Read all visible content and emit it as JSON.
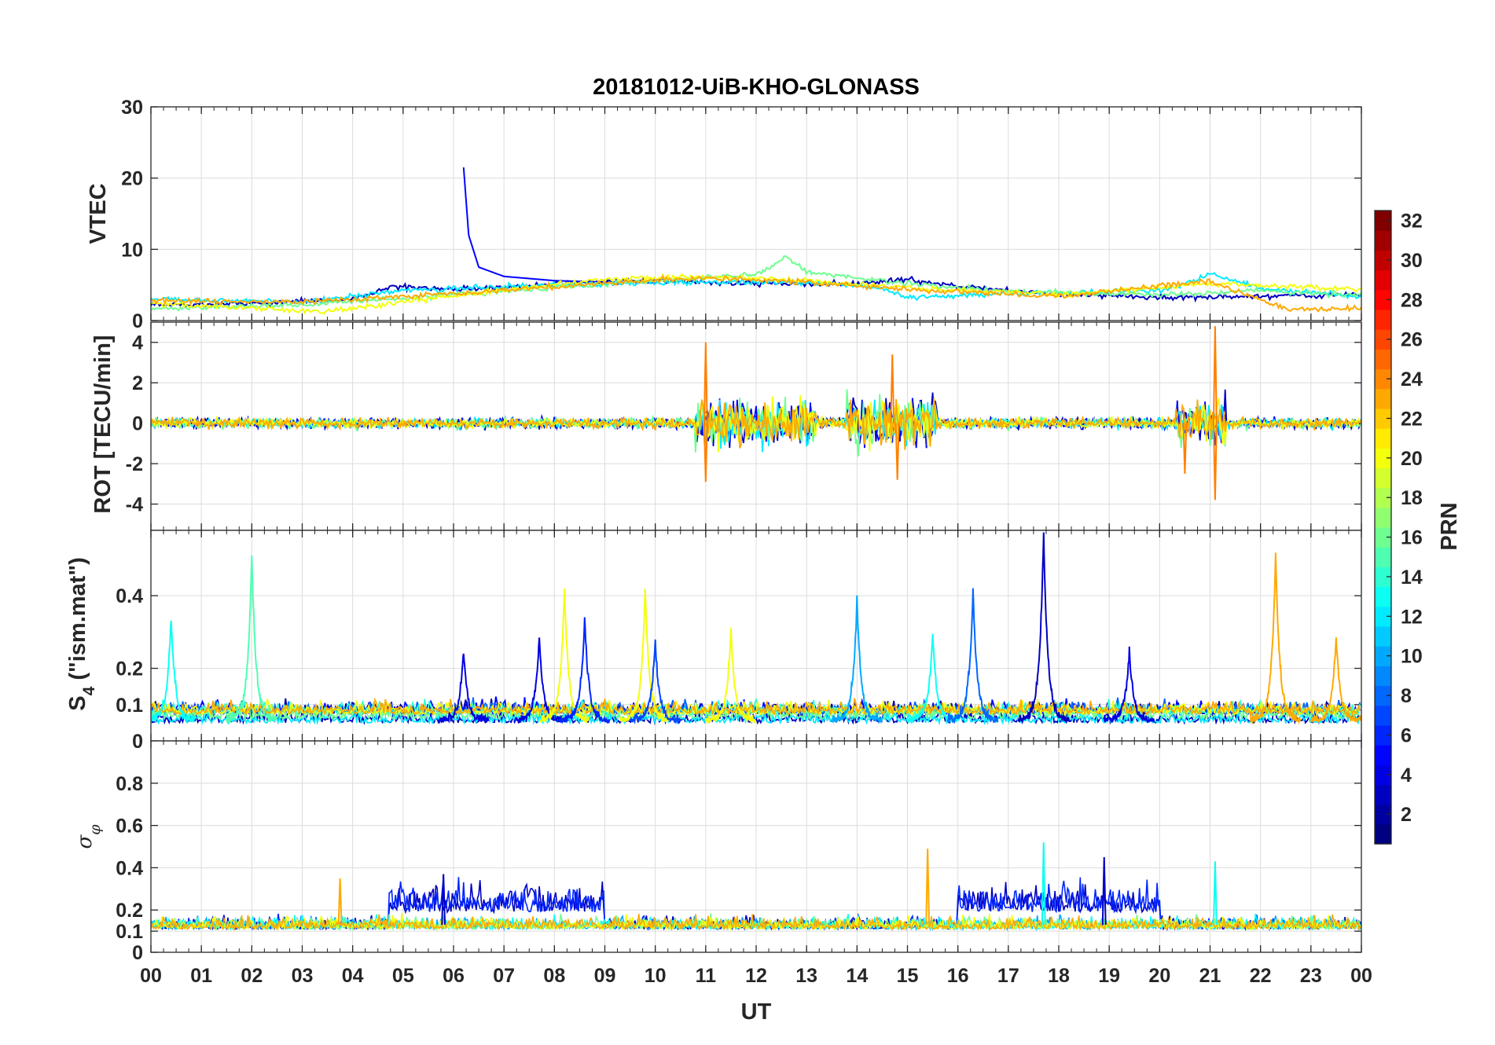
{
  "title": "20181012-UiB-KHO-GLONASS",
  "xlabel": "UT",
  "x_tick_labels": [
    "00",
    "01",
    "02",
    "03",
    "04",
    "05",
    "06",
    "07",
    "08",
    "09",
    "10",
    "11",
    "12",
    "13",
    "14",
    "15",
    "16",
    "17",
    "18",
    "19",
    "20",
    "21",
    "22",
    "23",
    "00"
  ],
  "colorbar": {
    "label": "PRN",
    "colormap": "jet",
    "range": [
      1,
      32
    ],
    "tick_labels": [
      "2",
      "4",
      "6",
      "8",
      "10",
      "12",
      "14",
      "16",
      "18",
      "20",
      "22",
      "24",
      "26",
      "28",
      "30",
      "32"
    ]
  },
  "panels": [
    {
      "ylabel": "VTEC",
      "tick_labels": [
        "0",
        "10",
        "20",
        "30"
      ]
    },
    {
      "ylabel": "ROT [TECU/min]",
      "tick_labels": [
        "-4",
        "-2",
        "0",
        "2",
        "4"
      ]
    },
    {
      "ylabel_main": "S",
      "ylabel_sub": "4",
      "ylabel_rest": " (\"ism.mat\")",
      "tick_labels": [
        "0",
        "0.1",
        "0.2",
        "0.4"
      ]
    },
    {
      "ylabel_main": "σ",
      "ylabel_sub": "φ",
      "tick_labels": [
        "0",
        "0.1",
        "0.2",
        "0.4",
        "0.6",
        "0.8"
      ]
    }
  ],
  "chart_data": [
    {
      "type": "line",
      "panel": "VTEC",
      "x_unit": "hours UT",
      "ylim": [
        0,
        30
      ],
      "yticks": [
        0,
        10,
        20,
        30
      ],
      "xlim": [
        0,
        24
      ],
      "grid": true,
      "series": [
        {
          "prn": 3,
          "color": "#0000ff",
          "x": [
            0,
            2,
            4,
            4.8,
            6,
            7,
            8,
            10,
            12,
            14,
            15,
            16,
            18,
            20,
            22,
            24
          ],
          "y": [
            2.2,
            2.4,
            3,
            4.8,
            4.3,
            4.6,
            5.2,
            5.6,
            5.2,
            5.2,
            5.8,
            4.8,
            3.8,
            3.2,
            3.4,
            3.6
          ]
        },
        {
          "prn": 5,
          "color": "#0000cd",
          "x": [
            6.2,
            6.3,
            6.5,
            7,
            8,
            9,
            10
          ],
          "y": [
            21.5,
            12,
            7.5,
            6.2,
            5.6,
            5.4,
            5.3
          ]
        },
        {
          "prn": 12,
          "color": "#00c8ff",
          "x": [
            0,
            3,
            5,
            7,
            9,
            11,
            13,
            14.5,
            15,
            17,
            20,
            21.1,
            22,
            24
          ],
          "y": [
            3,
            2.6,
            4.2,
            4.8,
            5.2,
            5.4,
            5.3,
            4.6,
            3.2,
            3.8,
            4.2,
            6.5,
            4.5,
            3.4
          ]
        },
        {
          "prn": 16,
          "color": "#50ff60",
          "x": [
            0,
            3,
            5,
            8,
            10,
            12,
            12.6,
            13,
            15,
            17,
            20,
            22,
            24
          ],
          "y": [
            1.6,
            2.2,
            3.2,
            4.6,
            5.6,
            6.4,
            9,
            6.8,
            5.2,
            4.1,
            3.6,
            4.2,
            3.6
          ]
        },
        {
          "prn": 20,
          "color": "#ffff00",
          "x": [
            0,
            3.5,
            6,
            9,
            11,
            13,
            15,
            18,
            21,
            24
          ],
          "y": [
            2.4,
            1.2,
            3.5,
            5.8,
            6.2,
            5.6,
            4.6,
            3.6,
            5.2,
            4.4
          ]
        },
        {
          "prn": 23,
          "color": "#ff8000",
          "x": [
            0,
            3,
            6,
            9,
            11,
            13,
            15,
            18,
            21,
            22.5,
            24
          ],
          "y": [
            2.8,
            2.6,
            3.8,
            5.2,
            6.0,
            5.4,
            4.4,
            3.4,
            5.6,
            1.5,
            1.8
          ]
        }
      ]
    },
    {
      "type": "line",
      "panel": "ROT [TECU/min]",
      "x_unit": "hours UT",
      "ylim": [
        -5.3,
        5
      ],
      "yticks": [
        -4,
        -2,
        0,
        2,
        4
      ],
      "xlim": [
        0,
        24
      ],
      "grid": true,
      "active_intervals": [
        [
          10.8,
          13.2
        ],
        [
          13.8,
          15.6
        ],
        [
          20.3,
          21.3
        ]
      ],
      "extremes": [
        {
          "x": 11.0,
          "y": 4.0
        },
        {
          "x": 11.0,
          "y": -2.9
        },
        {
          "x": 14.7,
          "y": 3.4
        },
        {
          "x": 14.8,
          "y": -2.8
        },
        {
          "x": 21.1,
          "y": 4.8
        },
        {
          "x": 21.1,
          "y": -3.8
        },
        {
          "x": 20.5,
          "y": -2.5
        }
      ]
    },
    {
      "type": "line",
      "panel": "S4",
      "x_unit": "hours UT",
      "ylim": [
        0,
        0.58
      ],
      "yticks": [
        0,
        0.1,
        0.2,
        0.4
      ],
      "xlim": [
        0,
        24
      ],
      "grid": true,
      "baseline": 0.05,
      "peaks": [
        {
          "x": 0.4,
          "y": 0.33,
          "prn": 13
        },
        {
          "x": 2.0,
          "y": 0.51,
          "prn": 15
        },
        {
          "x": 6.2,
          "y": 0.24,
          "prn": 4
        },
        {
          "x": 7.7,
          "y": 0.28,
          "prn": 4
        },
        {
          "x": 8.2,
          "y": 0.41,
          "prn": 20
        },
        {
          "x": 8.6,
          "y": 0.33,
          "prn": 6
        },
        {
          "x": 9.8,
          "y": 0.41,
          "prn": 20
        },
        {
          "x": 10.0,
          "y": 0.26,
          "prn": 7
        },
        {
          "x": 11.5,
          "y": 0.3,
          "prn": 20
        },
        {
          "x": 14.0,
          "y": 0.38,
          "prn": 10
        },
        {
          "x": 15.5,
          "y": 0.29,
          "prn": 13
        },
        {
          "x": 16.3,
          "y": 0.41,
          "prn": 8
        },
        {
          "x": 17.7,
          "y": 0.57,
          "prn": 3
        },
        {
          "x": 19.4,
          "y": 0.24,
          "prn": 4
        },
        {
          "x": 22.3,
          "y": 0.51,
          "prn": 23
        },
        {
          "x": 23.5,
          "y": 0.28,
          "prn": 23
        }
      ]
    },
    {
      "type": "line",
      "panel": "sigma_phi",
      "x_unit": "hours UT",
      "ylim": [
        0,
        1
      ],
      "yticks": [
        0,
        0.1,
        0.2,
        0.4,
        0.6,
        0.8
      ],
      "xlim": [
        0,
        24
      ],
      "grid": true,
      "baseline": 0.12,
      "enhanced_intervals": [
        [
          4.7,
          9.0
        ],
        [
          16.0,
          20.0
        ]
      ],
      "peaks": [
        {
          "x": 3.75,
          "y": 0.35,
          "prn": 23
        },
        {
          "x": 5.8,
          "y": 0.37,
          "prn": 3
        },
        {
          "x": 15.4,
          "y": 0.49,
          "prn": 23
        },
        {
          "x": 17.7,
          "y": 0.52,
          "prn": 13
        },
        {
          "x": 18.9,
          "y": 0.45,
          "prn": 3
        },
        {
          "x": 21.1,
          "y": 0.43,
          "prn": 13
        }
      ]
    }
  ]
}
